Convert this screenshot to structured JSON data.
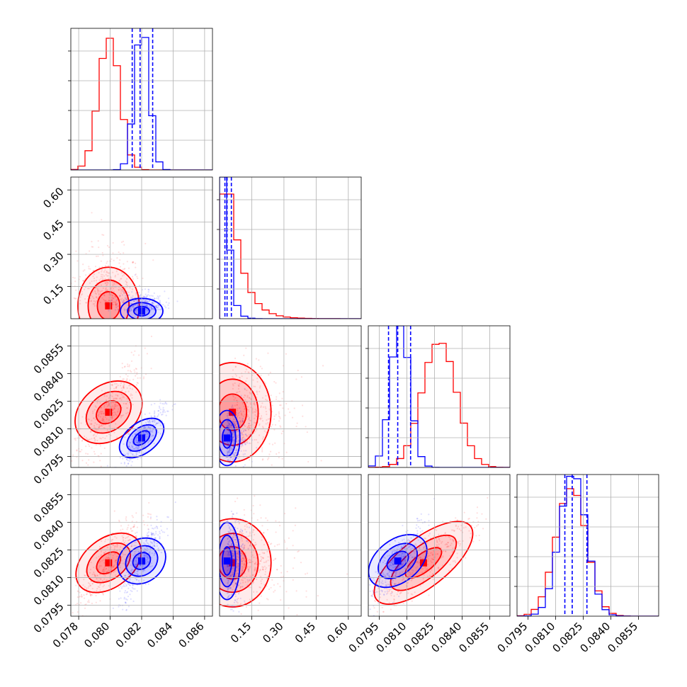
{
  "chart_data": {
    "type": "corner",
    "parameters": 4,
    "grid": true,
    "series": [
      {
        "color": "#ff0000",
        "marginals": [
          {
            "center": 0.0799,
            "spread": 0.00065,
            "peak": 0.93
          },
          {
            "center": 0.055,
            "spread": 0.06,
            "peak": 0.88
          },
          {
            "center": 0.0827,
            "spread": 0.0009,
            "peak": 0.88
          },
          {
            "center": 0.0818,
            "spread": 0.0008,
            "peak": 0.9
          }
        ],
        "points": {
          "1-0": {
            "x": 0.0799,
            "y": 0.06
          },
          "2-0": {
            "x": 0.0799,
            "y": 0.0819
          },
          "2-1": {
            "x": 0.06,
            "y": 0.0819
          },
          "3-0": {
            "x": 0.0799,
            "y": 0.0818
          },
          "3-1": {
            "x": 0.06,
            "y": 0.0818
          },
          "3-2": {
            "x": 0.0819,
            "y": 0.0818
          }
        }
      },
      {
        "color": "#0000ff",
        "marginals": [
          {
            "center": 0.082,
            "spread": 0.00045,
            "peak": 1.0
          },
          {
            "center": 0.035,
            "spread": 0.02,
            "peak": 1.0
          },
          {
            "center": 0.0806,
            "spread": 0.0005,
            "peak": 1.0
          },
          {
            "center": 0.0819,
            "spread": 0.0007,
            "peak": 1.0
          }
        ],
        "points": {
          "1-0": {
            "x": 0.082,
            "y": 0.035
          },
          "2-0": {
            "x": 0.082,
            "y": 0.0805
          },
          "2-1": {
            "x": 0.035,
            "y": 0.0805
          },
          "3-0": {
            "x": 0.082,
            "y": 0.0819
          },
          "3-1": {
            "x": 0.035,
            "y": 0.0819
          },
          "3-2": {
            "x": 0.0805,
            "y": 0.0819
          }
        }
      }
    ],
    "quantile_lines": [
      {
        "param": 0,
        "values": [
          0.0814,
          0.0819,
          0.0827
        ]
      },
      {
        "param": 1,
        "values": [
          0.025,
          0.035,
          0.055
        ]
      },
      {
        "param": 2,
        "values": [
          0.08,
          0.0805,
          0.0812
        ]
      },
      {
        "param": 3,
        "values": [
          0.0815,
          0.0819,
          0.0827
        ]
      }
    ],
    "axes": [
      {
        "range": [
          0.0775,
          0.0865
        ],
        "ticks": [
          "0.078",
          "0.080",
          "0.082",
          "0.084",
          "0.086"
        ]
      },
      {
        "range": [
          0.0,
          0.66
        ],
        "ticks": [
          "0.15",
          "0.30",
          "0.45",
          "0.60"
        ]
      },
      {
        "range": [
          0.0789,
          0.0866
        ],
        "ticks": [
          "0.0795",
          "0.0810",
          "0.0825",
          "0.0840",
          "0.0855"
        ]
      },
      {
        "range": [
          0.0789,
          0.0866
        ],
        "ticks": [
          "0.0795",
          "0.0810",
          "0.0825",
          "0.0840",
          "0.0855"
        ]
      }
    ]
  }
}
